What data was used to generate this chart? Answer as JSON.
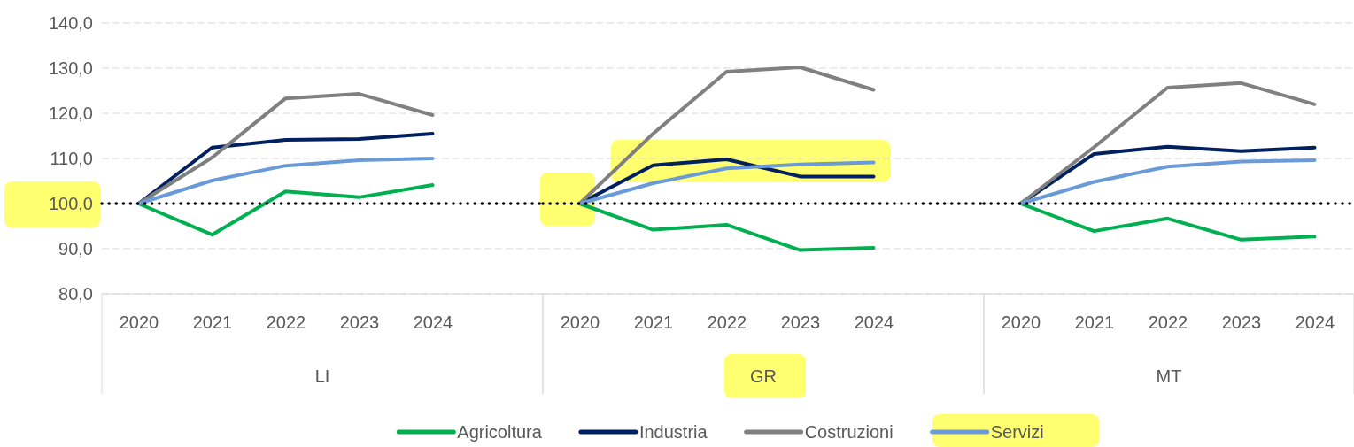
{
  "chart_data": [
    {
      "type": "line",
      "xlabel": "LI",
      "categories": [
        "2020",
        "2021",
        "2022",
        "2023",
        "2024"
      ],
      "ylim": [
        80,
        140
      ],
      "yticks": [
        {
          "value": 80,
          "label": "80,0"
        },
        {
          "value": 90,
          "label": "90,0"
        },
        {
          "value": 100,
          "label": "100,0"
        },
        {
          "value": 110,
          "label": "110,0"
        },
        {
          "value": 120,
          "label": "120,0"
        },
        {
          "value": 130,
          "label": "130,0"
        },
        {
          "value": 140,
          "label": "140,0"
        }
      ],
      "grid": "y",
      "line_style": "solid",
      "marker": "none",
      "ref_lines": [
        {
          "axis": "y",
          "value": 100,
          "color": "#000000",
          "line_style": "dotted"
        }
      ],
      "series": [
        {
          "color": "#00b050",
          "values": [
            100,
            93.1,
            102.7,
            101.4,
            104.1
          ]
        },
        {
          "color": "#002060",
          "values": [
            100,
            112.4,
            114.1,
            114.3,
            115.5
          ]
        },
        {
          "color": "#808080",
          "values": [
            100,
            110.2,
            123.3,
            124.3,
            119.6
          ]
        },
        {
          "color": "#6a9bd8",
          "values": [
            100,
            105.1,
            108.4,
            109.6,
            110
          ]
        }
      ]
    },
    {
      "type": "line",
      "xlabel": "GR",
      "categories": [
        "2020",
        "2021",
        "2022",
        "2023",
        "2024"
      ],
      "ylim": [
        80,
        140
      ],
      "yticks": [
        80,
        90,
        100,
        110,
        120,
        130,
        140
      ],
      "grid": "y",
      "tick_labels": "x",
      "line_style": "solid",
      "marker": "none",
      "legend": "bottom",
      "ref_lines": [
        {
          "axis": "y",
          "value": 100,
          "color": "#000000",
          "line_style": "dotted"
        }
      ],
      "series": [
        {
          "name": "Agricoltura",
          "color": "#00b050",
          "values": [
            100,
            94.2,
            95.3,
            89.7,
            90.2
          ]
        },
        {
          "name": "Industria",
          "color": "#002060",
          "values": [
            100,
            108.5,
            109.8,
            106,
            106
          ]
        },
        {
          "name": "Costruzioni",
          "color": "#808080",
          "values": [
            100,
            115.5,
            129.2,
            130.2,
            125.2
          ]
        },
        {
          "name": "Servizi",
          "color": "#6a9bd8",
          "values": [
            100,
            104.5,
            107.8,
            108.7,
            109.1
          ]
        }
      ]
    },
    {
      "type": "line",
      "xlabel": "MT",
      "categories": [
        "2020",
        "2021",
        "2022",
        "2023",
        "2024"
      ],
      "ylim": [
        80,
        140
      ],
      "yticks": [
        80,
        90,
        100,
        110,
        120,
        130,
        140
      ],
      "grid": "y",
      "tick_labels": "x",
      "line_style": "solid",
      "marker": "none",
      "ref_lines": [
        {
          "axis": "y",
          "value": 100,
          "color": "#000000",
          "line_style": "dotted"
        }
      ],
      "series": [
        {
          "color": "#00b050",
          "values": [
            100,
            93.9,
            96.7,
            92,
            92.7
          ]
        },
        {
          "color": "#002060",
          "values": [
            100,
            111,
            112.6,
            111.6,
            112.4
          ]
        },
        {
          "color": "#808080",
          "values": [
            100,
            112.5,
            125.7,
            126.7,
            122
          ]
        },
        {
          "color": "#6a9bd8",
          "values": [
            100,
            104.8,
            108.2,
            109.3,
            109.6
          ]
        }
      ]
    }
  ]
}
